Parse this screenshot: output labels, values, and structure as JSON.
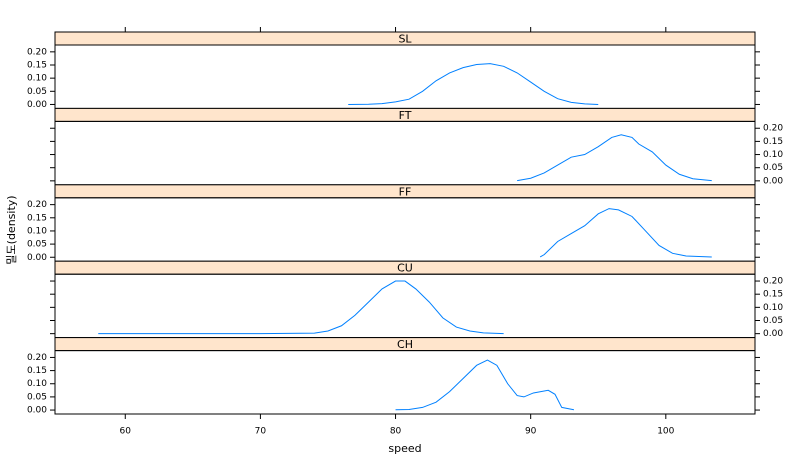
{
  "chart_data": {
    "type": "line",
    "xlabel": "speed",
    "ylabel": "밀도(density)",
    "xlim": [
      54.8,
      106.6
    ],
    "xticks": [
      60,
      70,
      80,
      90,
      100
    ],
    "ylim": [
      -0.015,
      0.226
    ],
    "yticks": [
      {
        "value": 0,
        "label": "0.00"
      },
      {
        "value": 0.05,
        "label": "0.05"
      },
      {
        "value": 0.1,
        "label": "0.10"
      },
      {
        "value": 0.15,
        "label": "0.15"
      },
      {
        "value": 0.2,
        "label": "0.20"
      }
    ],
    "strip_color": "#ffe5cc",
    "series": [
      {
        "name": "SL",
        "color": "#0080ff",
        "x": [
          76.5,
          78,
          79,
          80,
          81,
          82,
          83,
          84,
          85,
          86,
          87,
          88,
          89,
          90,
          91,
          92,
          93,
          94,
          95
        ],
        "values": [
          0,
          0.001,
          0.003,
          0.01,
          0.02,
          0.05,
          0.09,
          0.12,
          0.14,
          0.152,
          0.155,
          0.145,
          0.12,
          0.085,
          0.05,
          0.022,
          0.008,
          0.002,
          0
        ]
      },
      {
        "name": "FT",
        "color": "#0080ff",
        "x": [
          89,
          90,
          91,
          92,
          93,
          94,
          95,
          96,
          96.7,
          97.5,
          98,
          99,
          100,
          101,
          102,
          103.4
        ],
        "values": [
          0.001,
          0.01,
          0.03,
          0.06,
          0.09,
          0.1,
          0.13,
          0.165,
          0.175,
          0.165,
          0.14,
          0.11,
          0.06,
          0.025,
          0.008,
          0.001
        ]
      },
      {
        "name": "FF",
        "color": "#0080ff",
        "x": [
          90.7,
          91,
          92,
          93,
          94,
          95,
          95.8,
          96.5,
          97.5,
          98.5,
          99.5,
          100.5,
          101.5,
          103.4
        ],
        "values": [
          0.001,
          0.01,
          0.06,
          0.09,
          0.12,
          0.165,
          0.185,
          0.18,
          0.155,
          0.1,
          0.045,
          0.015,
          0.005,
          0.001
        ]
      },
      {
        "name": "CU",
        "color": "#0080ff",
        "x": [
          58,
          70,
          74,
          75,
          76,
          77,
          78,
          79,
          80,
          80.7,
          81.5,
          82.5,
          83.5,
          84.5,
          85.5,
          86.5,
          88
        ],
        "values": [
          0,
          0,
          0.002,
          0.01,
          0.03,
          0.07,
          0.12,
          0.17,
          0.2,
          0.2,
          0.17,
          0.12,
          0.06,
          0.025,
          0.01,
          0.003,
          0
        ]
      },
      {
        "name": "CH",
        "color": "#0080ff",
        "x": [
          80,
          81,
          82,
          83,
          84,
          85,
          86,
          86.8,
          87.5,
          88.3,
          89,
          89.5,
          90.2,
          91.3,
          91.8,
          92.3,
          93.2
        ],
        "values": [
          0.001,
          0.002,
          0.01,
          0.03,
          0.07,
          0.12,
          0.17,
          0.19,
          0.17,
          0.1,
          0.055,
          0.05,
          0.065,
          0.075,
          0.06,
          0.01,
          0.001
        ]
      }
    ]
  }
}
